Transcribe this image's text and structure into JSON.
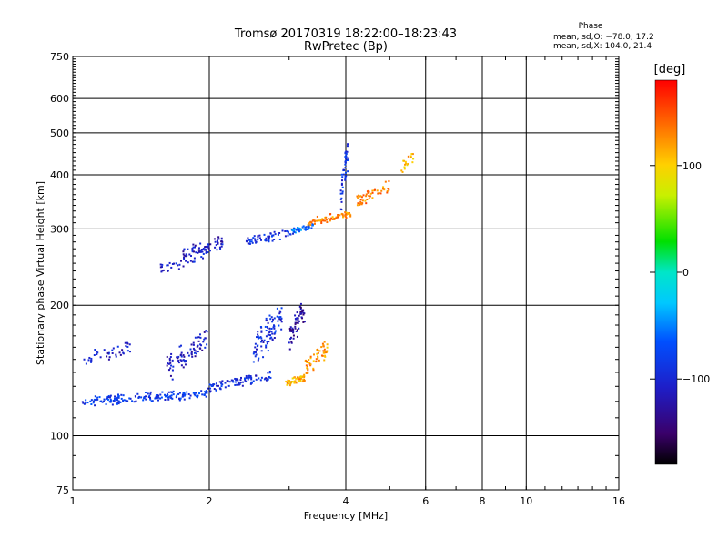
{
  "header": {
    "title_line1": "Tromsø 20170319 18:22:00–18:23:43",
    "title_line2": "RwPretec (Bp)",
    "phase_title": "Phase",
    "phase_o": "mean, sd,O: −78.0, 17.2",
    "phase_x": "mean, sd,X: 104.0, 21.4"
  },
  "colorbar": {
    "label": "[deg]",
    "ticks": [
      {
        "value": 100,
        "label": "100"
      },
      {
        "value": 0,
        "label": "0"
      },
      {
        "value": -100,
        "label": "−100"
      }
    ],
    "range": [
      -180,
      180
    ]
  },
  "chart_data": {
    "type": "scatter",
    "x_scale": "log",
    "y_scale": "log",
    "xlabel": "Frequency [MHz]",
    "ylabel": "Stationary phase Virtual Height [km]",
    "xlim": [
      1,
      16
    ],
    "ylim": [
      75,
      750
    ],
    "grid": true,
    "x_ticks": [
      {
        "v": 1,
        "label": "1"
      },
      {
        "v": 2,
        "label": "2"
      },
      {
        "v": 4,
        "label": "4"
      },
      {
        "v": 6,
        "label": "6"
      },
      {
        "v": 8,
        "label": "8"
      },
      {
        "v": 10,
        "label": "10"
      },
      {
        "v": 16,
        "label": "16"
      }
    ],
    "x_grid": [
      2,
      4,
      6,
      8,
      10
    ],
    "y_ticks": [
      {
        "v": 75,
        "label": "75"
      },
      {
        "v": 100,
        "label": "100"
      },
      {
        "v": 200,
        "label": "200"
      },
      {
        "v": 300,
        "label": "300"
      },
      {
        "v": 400,
        "label": "400"
      },
      {
        "v": 500,
        "label": "500"
      },
      {
        "v": 600,
        "label": "600"
      },
      {
        "v": 750,
        "label": "750"
      }
    ],
    "y_grid": [
      100,
      200,
      300,
      400,
      500,
      600
    ],
    "color_meaning": "phase in degrees (colorbar from −180 to 180)",
    "traces": [
      {
        "name": "",
        "x_range": [
          1.05,
          2.0
        ],
        "height": [
          118,
          127
        ],
        "phase": -85,
        "spread": 4,
        "density": 180
      },
      {
        "name": "",
        "x_range": [
          2.0,
          2.75
        ],
        "height": [
          127,
          140
        ],
        "phase": -95,
        "spread": 3,
        "density": 90
      },
      {
        "name": "",
        "x_range": [
          1.05,
          1.35
        ],
        "height": [
          145,
          165
        ],
        "phase": -105,
        "spread": 5,
        "density": 40
      },
      {
        "name": "",
        "x_range": [
          1.6,
          1.98
        ],
        "height": [
          135,
          175
        ],
        "phase": -110,
        "spread": 10,
        "density": 80
      },
      {
        "name": "",
        "x_range": [
          2.5,
          2.9
        ],
        "height": [
          145,
          200
        ],
        "phase": -95,
        "spread": 12,
        "density": 90
      },
      {
        "name": "",
        "x_range": [
          3.0,
          3.25
        ],
        "height": [
          160,
          205
        ],
        "phase": -130,
        "spread": 12,
        "density": 60
      },
      {
        "name": "",
        "x_range": [
          2.95,
          3.25
        ],
        "height": [
          130,
          138
        ],
        "phase": 110,
        "spread": 3,
        "density": 50
      },
      {
        "name": "",
        "x_range": [
          3.25,
          3.65
        ],
        "height": [
          135,
          165
        ],
        "phase": 120,
        "spread": 8,
        "density": 60
      },
      {
        "name": "",
        "x_range": [
          1.75,
          2.15
        ],
        "height": [
          255,
          285
        ],
        "phase": -110,
        "spread": 12,
        "density": 70
      },
      {
        "name": "",
        "x_range": [
          1.5,
          1.95
        ],
        "height": [
          235,
          260
        ],
        "phase": -105,
        "spread": 6,
        "density": 30
      },
      {
        "name": "",
        "x_range": [
          2.4,
          3.1
        ],
        "height": [
          275,
          300
        ],
        "phase": -95,
        "spread": 6,
        "density": 60
      },
      {
        "name": "",
        "x_range": [
          3.05,
          3.4
        ],
        "height": [
          293,
          308
        ],
        "phase": -60,
        "spread": 4,
        "density": 40
      },
      {
        "name": "",
        "x_range": [
          3.3,
          4.1
        ],
        "height": [
          305,
          330
        ],
        "phase": 125,
        "spread": 5,
        "density": 70
      },
      {
        "name": "",
        "x_range": [
          4.2,
          5.0
        ],
        "height": [
          335,
          390
        ],
        "phase": 130,
        "spread": 6,
        "density": 50
      },
      {
        "name": "",
        "x_range": [
          3.9,
          4.05
        ],
        "height": [
          330,
          480
        ],
        "phase": -90,
        "spread": 20,
        "density": 45
      },
      {
        "name": "",
        "x_range": [
          5.3,
          5.7
        ],
        "height": [
          400,
          460
        ],
        "phase": 110,
        "spread": 8,
        "density": 20
      }
    ]
  }
}
